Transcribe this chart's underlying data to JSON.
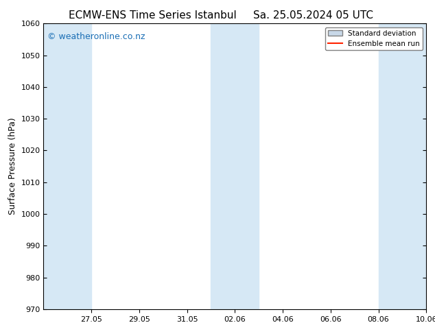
{
  "title_left": "ECMW-ENS Time Series Istanbul",
  "title_right": "Sa. 25.05.2024 05 UTC",
  "ylabel": "Surface Pressure (hPa)",
  "ylim": [
    970,
    1060
  ],
  "yticks": [
    970,
    980,
    990,
    1000,
    1010,
    1020,
    1030,
    1040,
    1050,
    1060
  ],
  "x_start": "2024-05-25",
  "x_end": "2024-06-10",
  "xtick_labels": [
    "27.05",
    "29.05",
    "31.05",
    "02.06",
    "04.06",
    "06.06",
    "08.06",
    "10.06"
  ],
  "xtick_dates": [
    "2024-05-27",
    "2024-05-29",
    "2024-05-31",
    "2024-06-02",
    "2024-06-04",
    "2024-06-06",
    "2024-06-08",
    "2024-06-10"
  ],
  "shaded_bands": [
    [
      "2024-05-25",
      "2024-05-27"
    ],
    [
      "2024-06-01",
      "2024-06-03"
    ],
    [
      "2024-06-08",
      "2024-06-10"
    ]
  ],
  "band_color": "#d6e8f5",
  "background_color": "#ffffff",
  "watermark": "© weatheronline.co.nz",
  "watermark_color": "#1a6eb5",
  "legend_std_color": "#c8d8e8",
  "legend_mean_color": "#ff2200",
  "title_fontsize": 11,
  "tick_fontsize": 8,
  "ylabel_fontsize": 9,
  "watermark_fontsize": 9
}
